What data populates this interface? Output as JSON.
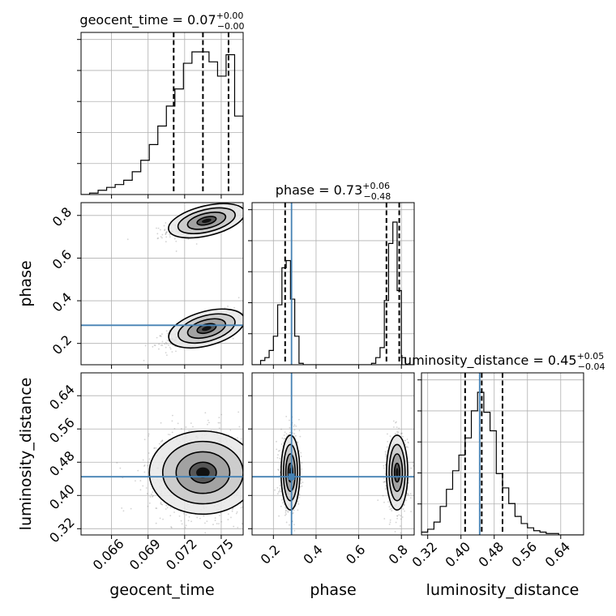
{
  "chart_data": {
    "type": "corner",
    "parameters": [
      "geocent_time",
      "phase",
      "luminosity_distance"
    ],
    "titles": [
      {
        "name": "geocent_time",
        "median": "0.07",
        "plus": "+0.00",
        "minus": "−0.00"
      },
      {
        "name": "phase",
        "median": "0.73",
        "plus": "+0.06",
        "minus": "−0.48"
      },
      {
        "name": "luminosity_distance",
        "median": "0.45",
        "plus": "+0.05",
        "minus": "−0.04"
      }
    ],
    "axis_labels": {
      "x": [
        "geocent_time",
        "phase",
        "luminosity_distance"
      ],
      "y": [
        "phase",
        "luminosity_distance"
      ]
    },
    "ranges": {
      "geocent_time": [
        0.0635,
        0.0768
      ],
      "phase": [
        0.1,
        0.86
      ],
      "luminosity_distance": [
        0.305,
        0.695
      ]
    },
    "ticks": {
      "geocent_time": [
        "0.066",
        "0.069",
        "0.072",
        "0.075"
      ],
      "phase": [
        "0.2",
        "0.4",
        "0.6",
        "0.8"
      ],
      "luminosity_distance": [
        "0.32",
        "0.40",
        "0.48",
        "0.56",
        "0.64"
      ]
    },
    "truth": {
      "phase": 0.285,
      "luminosity_distance": 0.445
    },
    "quantiles": {
      "geocent_time": [
        0.0711,
        0.0735,
        0.0756
      ],
      "phase": [
        0.255,
        0.73,
        0.79
      ],
      "luminosity_distance": [
        0.41,
        0.45,
        0.5
      ]
    },
    "histograms": {
      "geocent_time": {
        "edges": [
          0.0635,
          0.0642,
          0.0649,
          0.0656,
          0.0663,
          0.067,
          0.0677,
          0.0684,
          0.0691,
          0.0698,
          0.0705,
          0.0712,
          0.0719,
          0.0726,
          0.0733,
          0.074,
          0.0747,
          0.0754,
          0.0761,
          0.0768
        ],
        "counts": [
          0.0,
          0.01,
          0.03,
          0.05,
          0.07,
          0.1,
          0.16,
          0.24,
          0.35,
          0.48,
          0.62,
          0.74,
          0.92,
          1.0,
          1.0,
          0.93,
          0.83,
          0.98,
          0.55
        ]
      },
      "phase": {
        "edges": [
          0.1,
          0.12,
          0.14,
          0.16,
          0.18,
          0.2,
          0.22,
          0.24,
          0.26,
          0.28,
          0.3,
          0.32,
          0.34,
          0.36,
          0.38,
          0.4,
          0.42,
          0.44,
          0.46,
          0.48,
          0.5,
          0.52,
          0.54,
          0.56,
          0.58,
          0.6,
          0.62,
          0.64,
          0.66,
          0.68,
          0.7,
          0.72,
          0.74,
          0.76,
          0.78,
          0.8,
          0.82,
          0.84,
          0.86
        ],
        "counts": [
          0,
          0,
          0.03,
          0.05,
          0.1,
          0.2,
          0.42,
          0.68,
          0.73,
          0.46,
          0.2,
          0.01,
          0,
          0,
          0,
          0,
          0,
          0,
          0,
          0,
          0,
          0,
          0,
          0,
          0,
          0,
          0,
          0,
          0.01,
          0.05,
          0.12,
          0.45,
          0.85,
          1.0,
          0.52,
          0.05,
          0,
          0
        ]
      },
      "luminosity_distance": {
        "edges": [
          0.305,
          0.32,
          0.335,
          0.35,
          0.365,
          0.38,
          0.395,
          0.41,
          0.425,
          0.44,
          0.455,
          0.47,
          0.485,
          0.5,
          0.515,
          0.53,
          0.545,
          0.56,
          0.575,
          0.59,
          0.605,
          0.62,
          0.635,
          0.65,
          0.665,
          0.68,
          0.695
        ],
        "counts": [
          0.02,
          0.04,
          0.09,
          0.2,
          0.32,
          0.45,
          0.56,
          0.68,
          0.87,
          1.0,
          0.86,
          0.73,
          0.43,
          0.33,
          0.22,
          0.13,
          0.08,
          0.05,
          0.03,
          0.02,
          0.01,
          0.01,
          0,
          0,
          0,
          0
        ]
      }
    },
    "pairs": {
      "phase_vs_geocent_time": {
        "x": "geocent_time",
        "y": "phase",
        "clusters": [
          {
            "cx": 0.0738,
            "cy": 0.775,
            "sx": 0.0016,
            "sy": 0.035,
            "rho": 0.7,
            "n": 650
          },
          {
            "cx": 0.0738,
            "cy": 0.27,
            "sx": 0.0016,
            "sy": 0.04,
            "rho": 0.7,
            "n": 650
          }
        ]
      },
      "luminosity_distance_vs_geocent_time": {
        "x": "geocent_time",
        "y": "luminosity_distance",
        "clusters": [
          {
            "cx": 0.0735,
            "cy": 0.455,
            "sx": 0.0022,
            "sy": 0.05,
            "rho": 0.0,
            "n": 1300
          }
        ]
      },
      "luminosity_distance_vs_phase": {
        "x": "phase",
        "y": "luminosity_distance",
        "clusters": [
          {
            "cx": 0.28,
            "cy": 0.455,
            "sx": 0.022,
            "sy": 0.045,
            "rho": 0.0,
            "n": 700
          },
          {
            "cx": 0.78,
            "cy": 0.455,
            "sx": 0.025,
            "sy": 0.045,
            "rho": 0.0,
            "n": 700
          }
        ]
      }
    },
    "colors": {
      "truth": "#4682b4",
      "hist": "#000000",
      "points": "#808080"
    }
  }
}
